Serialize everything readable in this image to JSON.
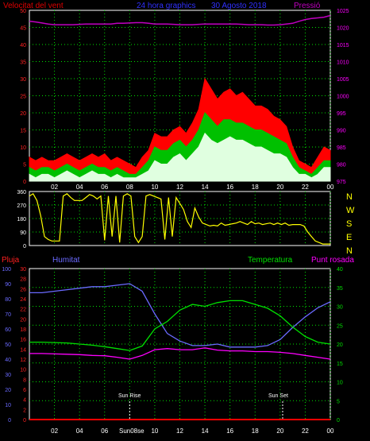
{
  "header": {
    "wind_label": "Velocitat del vent",
    "period_label": "24 hora graphics",
    "date_label": "30 Agosto 2018",
    "pressure_label": "Pressió"
  },
  "lower_header": {
    "rain_label": "Pluja",
    "humidity_label": "Humitat",
    "temperature_label": "Temperatura",
    "dewpoint_label": "Punt rosada"
  },
  "annotations": {
    "sunrise": "Sun Rise",
    "sunset": "Sun Set",
    "sunrise_axis_label": "Sun08se"
  },
  "colors": {
    "wind_gust": "#ff0000",
    "wind_avg": "#00c000",
    "wind_low": "#e0ffe0",
    "pressure": "#c000c0",
    "direction": "#ffff00",
    "rain": "#ff0000",
    "humidity": "#6a6aff",
    "temperature": "#00e000",
    "dewpoint": "#ff00ff",
    "axis_left": "#ff2020",
    "axis_right": "#ff00ff",
    "hum_axis": "#6a6aff",
    "temp_axis": "#00e000",
    "grid": "#00e000"
  },
  "chart_data": [
    {
      "type": "area",
      "name": "wind",
      "xlabel": "",
      "ylabel": "Velocitat del vent",
      "ylim": [
        0,
        50
      ],
      "y_ticks": [
        0,
        5,
        10,
        15,
        20,
        25,
        30,
        35,
        40,
        45,
        50
      ],
      "y2label": "Pressió",
      "y2lim": [
        975,
        1025
      ],
      "y2_ticks": [
        975,
        980,
        985,
        990,
        995,
        1000,
        1005,
        1010,
        1015,
        1020,
        1025
      ],
      "x_ticks": [
        "02",
        "04",
        "06",
        "08",
        "10",
        "12",
        "14",
        "16",
        "18",
        "20",
        "22",
        "00"
      ],
      "grid": true,
      "x": [
        0,
        0.5,
        1,
        1.5,
        2,
        2.5,
        3,
        3.5,
        4,
        4.5,
        5,
        5.5,
        6,
        6.5,
        7,
        7.5,
        8,
        8.5,
        9,
        9.5,
        10,
        10.5,
        11,
        11.5,
        12,
        12.5,
        13,
        13.5,
        14,
        14.5,
        15,
        15.5,
        16,
        16.5,
        17,
        17.5,
        18,
        18.5,
        19,
        19.5,
        20,
        20.5,
        21,
        21.5,
        22,
        22.5,
        23,
        23.5,
        24
      ],
      "series": [
        {
          "name": "gust",
          "values": [
            7,
            6,
            7,
            6,
            6,
            7,
            8,
            7,
            6,
            7,
            8,
            7,
            8,
            6,
            7,
            6,
            5,
            4,
            7,
            9,
            14,
            13,
            13,
            15,
            16,
            14,
            17,
            21,
            30,
            27,
            24,
            26,
            27,
            25,
            26,
            24,
            22,
            22,
            21,
            19,
            18,
            16,
            10,
            6,
            5,
            4,
            7,
            10,
            9
          ]
        },
        {
          "name": "average",
          "values": [
            4,
            3,
            4,
            4,
            3,
            4,
            5,
            4,
            3,
            4,
            5,
            4,
            4,
            3,
            4,
            3,
            2,
            2,
            4,
            6,
            10,
            9,
            9,
            11,
            12,
            10,
            12,
            15,
            20,
            18,
            16,
            18,
            18,
            17,
            17,
            16,
            15,
            15,
            14,
            13,
            12,
            11,
            7,
            4,
            3,
            2,
            4,
            6,
            6
          ]
        },
        {
          "name": "low",
          "values": [
            2,
            1,
            2,
            2,
            1,
            2,
            3,
            2,
            1,
            2,
            3,
            2,
            2,
            1,
            2,
            1,
            1,
            1,
            2,
            3,
            6,
            5,
            5,
            7,
            8,
            6,
            8,
            10,
            14,
            12,
            11,
            12,
            13,
            12,
            12,
            11,
            10,
            10,
            9,
            8,
            8,
            7,
            4,
            2,
            2,
            1,
            2,
            4,
            4
          ]
        },
        {
          "name": "pressure",
          "values": [
            1021.8,
            1021.6,
            1021.3,
            1021.0,
            1020.8,
            1020.8,
            1020.8,
            1020.8,
            1020.9,
            1021.0,
            1021.0,
            1021.0,
            1021.0,
            1021.0,
            1021.2,
            1021.2,
            1021.3,
            1021.4,
            1021.4,
            1021.2,
            1021.0,
            1021.0,
            1021.0,
            1020.9,
            1020.8,
            1020.8,
            1020.8,
            1020.9,
            1021.0,
            1021.0,
            1021.0,
            1021.0,
            1021.0,
            1021.0,
            1020.9,
            1020.8,
            1020.8,
            1020.8,
            1020.7,
            1020.7,
            1020.8,
            1021.0,
            1021.2,
            1021.8,
            1022.3,
            1022.6,
            1022.8,
            1023.0,
            1023.5
          ]
        }
      ]
    },
    {
      "type": "line",
      "name": "wind-direction",
      "ylim": [
        0,
        360
      ],
      "y_ticks": [
        0,
        90,
        180,
        270,
        360
      ],
      "directions_right": [
        "N",
        "W",
        "S",
        "E",
        "N"
      ],
      "x_ticks": [
        "02",
        "04",
        "06",
        "08",
        "10",
        "12",
        "14",
        "16",
        "18",
        "20",
        "22",
        "00"
      ],
      "x": [
        0,
        0.3,
        0.6,
        0.9,
        1.2,
        1.5,
        1.8,
        2.1,
        2.4,
        2.7,
        3.0,
        3.3,
        3.6,
        3.9,
        4.2,
        4.5,
        4.8,
        5.1,
        5.4,
        5.7,
        6.0,
        6.3,
        6.6,
        6.9,
        7.2,
        7.5,
        7.8,
        8.1,
        8.4,
        8.7,
        9.0,
        9.3,
        9.6,
        9.9,
        10.2,
        10.5,
        10.8,
        11.1,
        11.4,
        11.7,
        12.0,
        12.3,
        12.6,
        12.9,
        13.2,
        13.5,
        13.8,
        14.1,
        14.4,
        14.7,
        15.0,
        15.3,
        15.6,
        15.9,
        16.2,
        16.5,
        16.8,
        17.1,
        17.4,
        17.7,
        18.0,
        18.3,
        18.6,
        18.9,
        19.2,
        19.5,
        19.8,
        20.1,
        20.4,
        20.7,
        21.0,
        21.3,
        21.6,
        21.9,
        22.2,
        22.5,
        22.8,
        23.1,
        23.4,
        23.7,
        24.0
      ],
      "values": [
        330,
        345,
        300,
        200,
        60,
        40,
        30,
        30,
        30,
        330,
        345,
        320,
        300,
        300,
        300,
        320,
        340,
        330,
        310,
        330,
        35,
        330,
        60,
        330,
        20,
        330,
        345,
        330,
        60,
        20,
        60,
        330,
        340,
        330,
        320,
        310,
        40,
        320,
        60,
        320,
        280,
        240,
        160,
        120,
        250,
        190,
        150,
        140,
        130,
        135,
        130,
        150,
        135,
        140,
        145,
        150,
        160,
        150,
        140,
        160,
        145,
        150,
        140,
        145,
        150,
        140,
        150,
        140,
        150,
        135,
        140,
        140,
        140,
        130,
        90,
        60,
        30,
        20,
        10,
        10,
        10
      ]
    },
    {
      "type": "line",
      "name": "rain-humidity-temperature-dewpoint",
      "y_rain_lim": [
        0,
        30
      ],
      "y_rain_ticks": [
        0,
        2,
        4,
        6,
        8,
        10,
        12,
        14,
        16,
        18,
        20,
        22,
        24,
        26,
        28,
        30
      ],
      "y_hum_lim": [
        0,
        100
      ],
      "y_hum_ticks": [
        0,
        10,
        20,
        30,
        40,
        50,
        60,
        70,
        80,
        90,
        100
      ],
      "y_temp_lim": [
        0,
        40
      ],
      "y_temp_ticks": [
        0,
        5,
        10,
        15,
        20,
        25,
        30,
        35,
        40
      ],
      "x_ticks": [
        "02",
        "04",
        "06",
        "",
        "10",
        "12",
        "14",
        "16",
        "18",
        "20",
        "22",
        "00"
      ],
      "sunrise_hour": 8.0,
      "sunset_hour": 20.2,
      "x": [
        0,
        1,
        2,
        3,
        4,
        5,
        6,
        7,
        8,
        9,
        10,
        11,
        12,
        13,
        14,
        15,
        16,
        17,
        18,
        19,
        20,
        21,
        22,
        23,
        24
      ],
      "series": [
        {
          "name": "Pluja",
          "values": [
            0,
            0,
            0,
            0,
            0,
            0,
            0,
            0,
            0,
            0,
            0,
            0,
            0,
            0,
            0,
            0,
            0,
            0,
            0,
            0,
            0,
            0,
            0,
            0,
            0
          ]
        },
        {
          "name": "Humitat",
          "values": [
            84,
            84,
            85,
            86,
            87,
            88,
            88,
            89,
            90,
            85,
            70,
            57,
            52,
            49,
            49,
            50,
            48,
            48,
            48,
            49,
            53,
            61,
            68,
            74,
            78
          ]
        },
        {
          "name": "Temperatura",
          "values": [
            20.5,
            20.5,
            20.4,
            20.3,
            20.0,
            19.7,
            19.3,
            18.8,
            18.3,
            19.5,
            24.0,
            26.0,
            29.0,
            30.5,
            30.0,
            31.0,
            31.5,
            31.5,
            30.5,
            29.5,
            27.5,
            24.5,
            22.0,
            20.5,
            20.0
          ]
        },
        {
          "name": "Punt rosada",
          "values": [
            17.5,
            17.5,
            17.4,
            17.3,
            17.2,
            17.0,
            16.9,
            16.5,
            16.0,
            17.0,
            18.5,
            18.8,
            18.5,
            18.5,
            19.0,
            18.4,
            18.2,
            18.2,
            18.0,
            18.0,
            17.8,
            17.5,
            17.0,
            16.5,
            16.0
          ]
        }
      ]
    }
  ]
}
